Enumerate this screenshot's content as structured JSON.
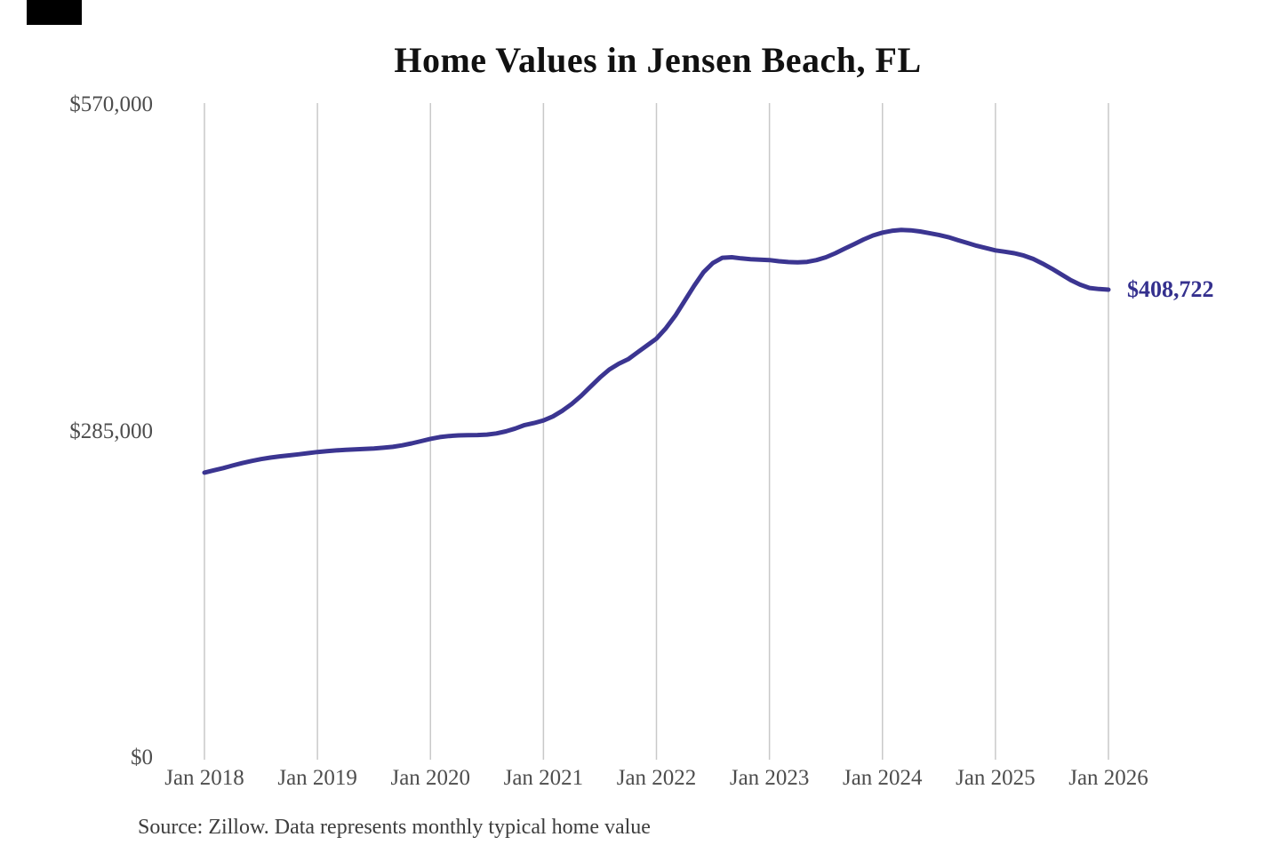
{
  "page": {
    "background": "#ffffff"
  },
  "artifact": {
    "description": "small black rectangle at top-left of screenshot"
  },
  "chart": {
    "title": "Home Values in Jensen Beach, FL",
    "source_note": "Source: Zillow. Data represents monthly typical home value",
    "end_label": "$408,722",
    "colors": {
      "line": "#3b3591",
      "end_label": "#34308e",
      "gridline": "#c9c9c9",
      "title": "#111111",
      "tick_text": "#4d4d4d",
      "source_text": "#3d3d3d"
    }
  },
  "chart_data": {
    "type": "line",
    "title": "Home Values in Jensen Beach, FL",
    "series_name": "Monthly typical home value (Zillow)",
    "x_start": "Jan 2018",
    "x_end": "Jan 2026",
    "x_interval": "monthly",
    "x_tick_labels": [
      "Jan 2018",
      "Jan 2019",
      "Jan 2020",
      "Jan 2021",
      "Jan 2022",
      "Jan 2023",
      "Jan 2024",
      "Jan 2025",
      "Jan 2026"
    ],
    "y_ticks": [
      {
        "label": "$0",
        "value": 0
      },
      {
        "label": "$285,000",
        "value": 285000
      },
      {
        "label": "$570,000",
        "value": 570000
      }
    ],
    "ylim": [
      0,
      570000
    ],
    "grid": "vertical-yearly",
    "legend": "none",
    "end_value": 408722,
    "end_label": "$408,722",
    "values": [
      249000,
      251000,
      253000,
      255200,
      257300,
      259200,
      260800,
      262100,
      263200,
      264100,
      265000,
      266000,
      267000,
      267800,
      268400,
      268900,
      269300,
      269700,
      270100,
      270700,
      271500,
      272800,
      274500,
      276500,
      278500,
      280000,
      281000,
      281500,
      281700,
      281800,
      282200,
      283200,
      285000,
      287500,
      290500,
      292300,
      294500,
      298000,
      303000,
      309000,
      316000,
      324000,
      332000,
      339000,
      344000,
      348000,
      354000,
      360000,
      366000,
      375000,
      386000,
      399000,
      412000,
      424000,
      432000,
      436500,
      437000,
      436000,
      435200,
      434800,
      434500,
      433500,
      432800,
      432500,
      433000,
      434500,
      437000,
      440500,
      444500,
      448500,
      452500,
      456000,
      458500,
      460000,
      460800,
      460500,
      459500,
      458000,
      456500,
      454500,
      452000,
      449500,
      447000,
      445000,
      443000,
      441800,
      440500,
      438500,
      435500,
      431500,
      427000,
      422000,
      417000,
      413000,
      410200,
      409200,
      408722
    ]
  }
}
